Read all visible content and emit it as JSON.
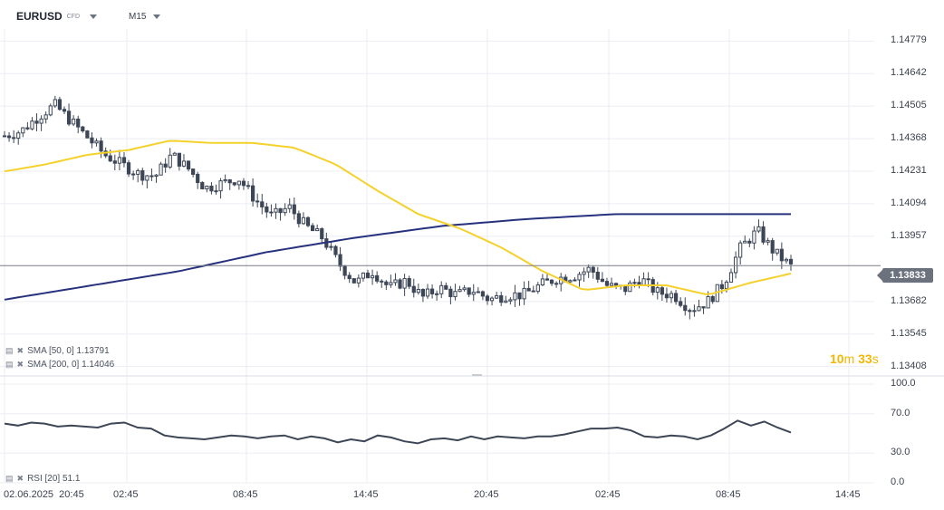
{
  "header": {
    "symbol": "EURUSD",
    "symbol_type": "CFD",
    "timeframe": "M15"
  },
  "indicators": {
    "sma50": "SMA [50, 0] 1.13791",
    "sma200": "SMA [200, 0] 1.14046",
    "rsi": "RSI [20] 51.1"
  },
  "countdown": {
    "minutes": "10",
    "minutes_unit": "m",
    "seconds": "33",
    "seconds_unit": "s"
  },
  "current_price": "1.13833",
  "colors": {
    "candle": "#3d4656",
    "sma50": "#f5d12b",
    "sma200": "#27327e",
    "rsi": "#3d4656",
    "grid": "#eceef2",
    "price_line": "#7a7f8a",
    "countdown": "#f2b705"
  },
  "chart_data": [
    {
      "type": "candlestick",
      "symbol": "EURUSD",
      "timeframe": "M15",
      "ylim": [
        1.1338,
        1.1483
      ],
      "y_ticks": [
        "1.14779",
        "1.14642",
        "1.14505",
        "1.14368",
        "1.14231",
        "1.14094",
        "1.13957",
        "1.13682",
        "1.13545",
        "1.13408"
      ],
      "x_ticks": [
        "02.06.2025  20:45",
        "02:45",
        "08:45",
        "14:45",
        "20:45",
        "02:45",
        "08:45",
        "14:45"
      ],
      "close_path": [
        1.1438,
        1.144,
        1.1446,
        1.1451,
        1.1444,
        1.1437,
        1.143,
        1.1426,
        1.1422,
        1.1421,
        1.143,
        1.1424,
        1.1416,
        1.1418,
        1.142,
        1.1411,
        1.1404,
        1.1408,
        1.14,
        1.1395,
        1.1384,
        1.1376,
        1.1381,
        1.1374,
        1.1377,
        1.137,
        1.1374,
        1.1371,
        1.1373,
        1.1369,
        1.1371,
        1.1371,
        1.1375,
        1.1378,
        1.1379,
        1.1382,
        1.1375,
        1.1373,
        1.1378,
        1.1372,
        1.1371,
        1.1365,
        1.1368,
        1.1376,
        1.1391,
        1.1398,
        1.1389,
        1.1383
      ],
      "sma50": [
        1.1423,
        1.1426,
        1.143,
        1.1432,
        1.1436,
        1.1435,
        1.1435,
        1.1433,
        1.1426,
        1.1415,
        1.1405,
        1.1399,
        1.1391,
        1.1381,
        1.1373,
        1.1375,
        1.1375,
        1.1371,
        1.1376,
        1.138
      ],
      "sma200": [
        1.1369,
        1.1375,
        1.1381,
        1.1389,
        1.1395,
        1.14,
        1.1403,
        1.1405,
        1.1405,
        1.1405
      ],
      "last_price": 1.13833
    },
    {
      "type": "line",
      "name": "RSI [20]",
      "ylim": [
        0,
        100
      ],
      "y_ticks": [
        "100.0",
        "70.0",
        "30.0",
        "0.0"
      ],
      "values": [
        60,
        58,
        61,
        60,
        57,
        58,
        57,
        56,
        60,
        61,
        56,
        55,
        48,
        46,
        45,
        44,
        46,
        48,
        47,
        45,
        47,
        48,
        44,
        47,
        45,
        41,
        44,
        42,
        48,
        46,
        42,
        40,
        44,
        45,
        43,
        47,
        44,
        47,
        46,
        45,
        47,
        47,
        49,
        52,
        55,
        55,
        56,
        53,
        47,
        46,
        48,
        47,
        44,
        48,
        55,
        63,
        58,
        62,
        56,
        51
      ],
      "current": 51.1
    }
  ]
}
